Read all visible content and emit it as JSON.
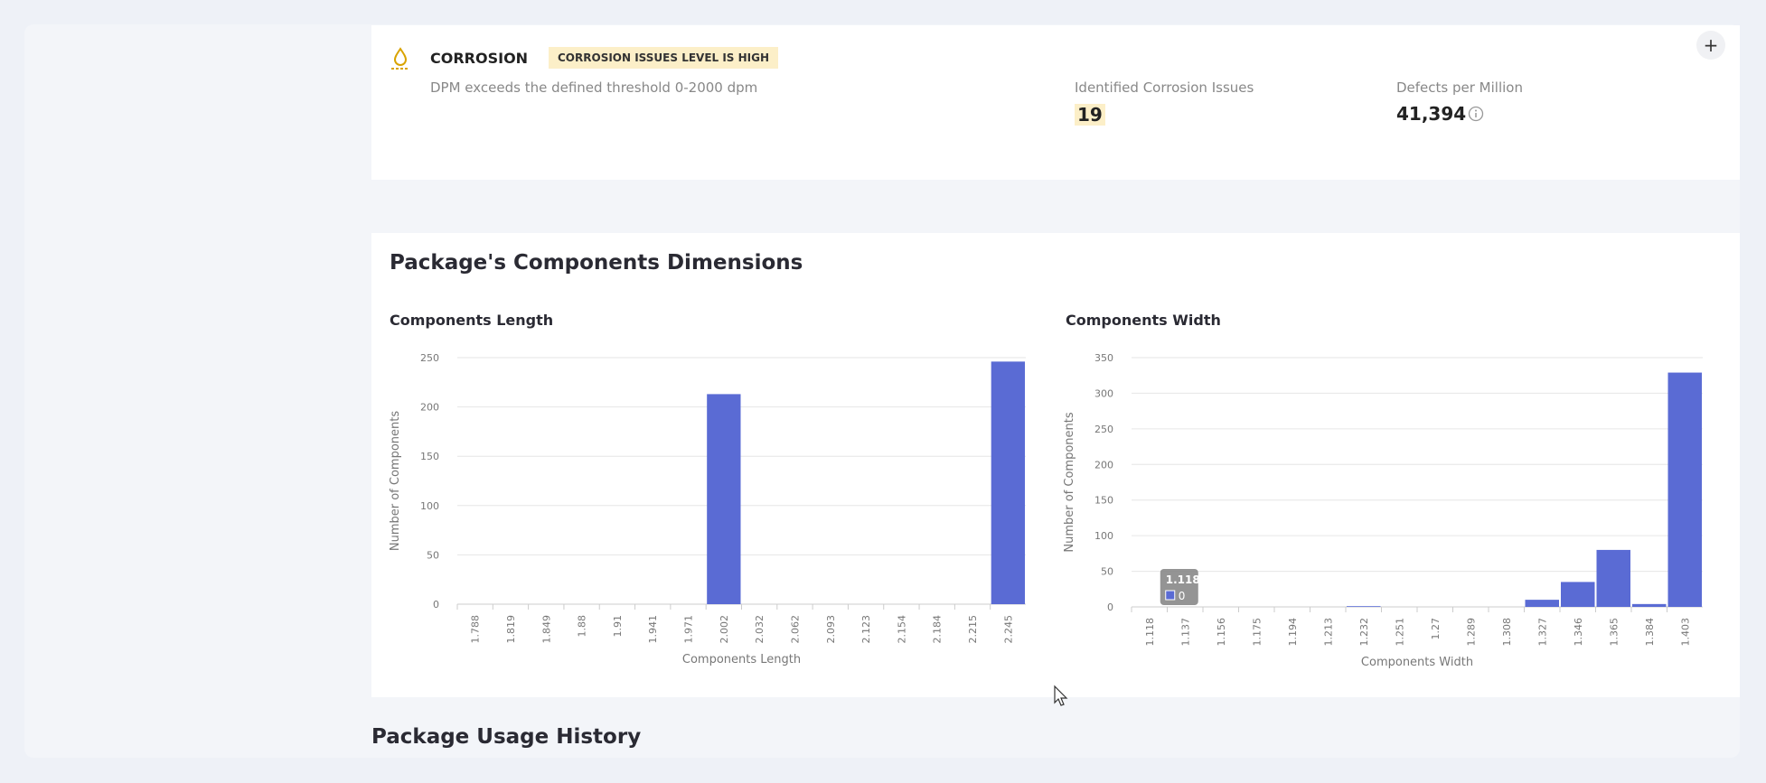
{
  "corrosion": {
    "title": "CORROSION",
    "badge": "CORROSION ISSUES LEVEL IS HIGH",
    "description": "DPM exceeds the defined threshold 0-2000 dpm",
    "issues_label": "Identified Corrosion Issues",
    "issues_value": "19",
    "dpm_label": "Defects per Million",
    "dpm_value": "41,394",
    "add_button": "+"
  },
  "dimensions_title": "Package's Components Dimensions",
  "usage_title": "Package Usage History",
  "chart_data": [
    {
      "type": "bar",
      "title": "Components Length",
      "x_label": "Components Length",
      "y_label": "Number of Components",
      "categories": [
        "1.788",
        "1.819",
        "1.849",
        "1.88",
        "1.91",
        "1.941",
        "1.971",
        "2.002",
        "2.032",
        "2.062",
        "2.093",
        "2.123",
        "2.154",
        "2.184",
        "2.215",
        "2.245"
      ],
      "values": [
        0,
        0,
        0,
        0,
        0,
        0,
        0,
        213,
        0,
        0,
        0,
        0,
        0,
        0,
        0,
        246
      ],
      "color": "#5a6bd4",
      "ylim": [
        0,
        250
      ],
      "yticks": [
        0,
        50,
        100,
        150,
        200,
        250
      ],
      "grid": true
    },
    {
      "type": "bar",
      "title": "Components Width",
      "x_label": "Components Width",
      "y_label": "Number of Components",
      "categories": [
        "1.118",
        "1.137",
        "1.156",
        "1.175",
        "1.194",
        "1.213",
        "1.232",
        "1.251",
        "1.27",
        "1.289",
        "1.308",
        "1.327",
        "1.346",
        "1.365",
        "1.384",
        "1.403"
      ],
      "values": [
        0,
        0,
        0,
        0,
        0,
        0,
        1,
        0,
        0,
        0,
        0,
        10,
        35,
        80,
        4,
        329
      ],
      "color": "#5a6bd4",
      "ylim": [
        0,
        350
      ],
      "yticks": [
        0,
        50,
        100,
        150,
        200,
        250,
        300,
        350
      ],
      "grid": true
    }
  ]
}
